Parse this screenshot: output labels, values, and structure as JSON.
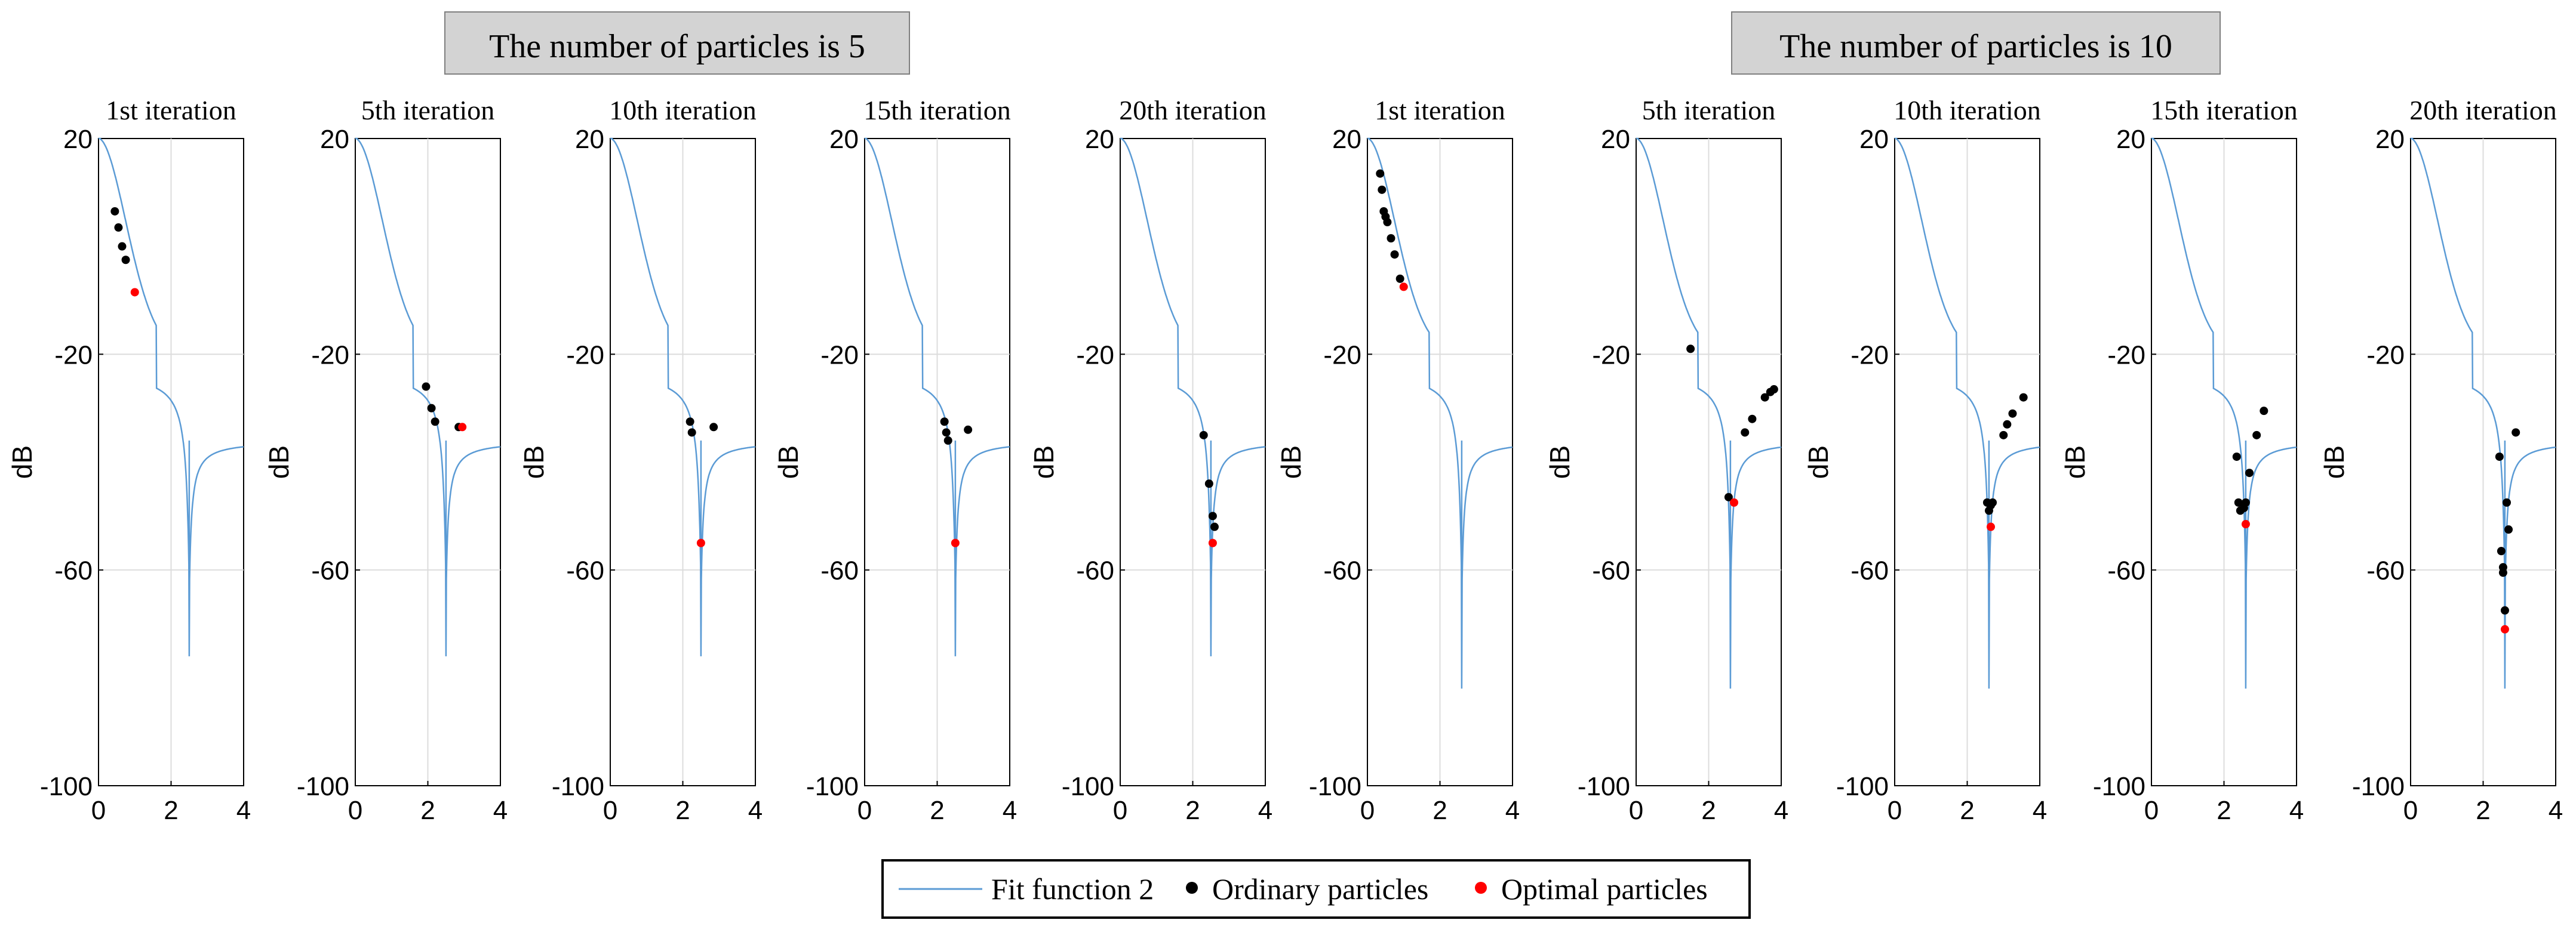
{
  "figure": {
    "group_headers": [
      "The number of particles is 5",
      "The number of particles is 10"
    ]
  },
  "legend": {
    "fit_label": "Fit function 2",
    "ordinary_label": "Ordinary particles",
    "optimal_label": "Optimal particles"
  },
  "colors": {
    "fit_line": "#5b9bd5",
    "ordinary": "#000000",
    "optimal": "#ff0000",
    "grid": "#dcdcdc",
    "header_bg": "#d3d3d3",
    "header_border": "#7f7f7f"
  },
  "chart_data": [
    {
      "type": "scatter",
      "group": "The number of particles is 5",
      "title": "1st iteration",
      "ylabel": "dB",
      "xlim": [
        0,
        4
      ],
      "ylim": [
        -100,
        20
      ],
      "xticks": [
        "0",
        "2",
        "4"
      ],
      "yticks": [
        "20",
        "-20",
        "-60",
        "-100"
      ],
      "grid": true,
      "curve_notch": {
        "x": 2.5,
        "depth": -76
      },
      "ordinary": [
        [
          0.45,
          6.5
        ],
        [
          0.55,
          3.5
        ],
        [
          0.65,
          0
        ],
        [
          0.75,
          -2.5
        ]
      ],
      "optimal": [
        [
          1.0,
          -8.5
        ]
      ]
    },
    {
      "type": "scatter",
      "group": "The number of particles is 5",
      "title": "5th iteration",
      "ylabel": "dB",
      "xlim": [
        0,
        4
      ],
      "ylim": [
        -100,
        20
      ],
      "xticks": [
        "0",
        "2",
        "4"
      ],
      "yticks": [
        "20",
        "-20",
        "-60",
        "-100"
      ],
      "grid": true,
      "curve_notch": {
        "x": 2.5,
        "depth": -76
      },
      "ordinary": [
        [
          1.95,
          -26
        ],
        [
          2.1,
          -30
        ],
        [
          2.2,
          -32.5
        ],
        [
          2.85,
          -33.5
        ]
      ],
      "optimal": [
        [
          2.95,
          -33.5
        ]
      ]
    },
    {
      "type": "scatter",
      "group": "The number of particles is 5",
      "title": "10th iteration",
      "ylabel": "dB",
      "xlim": [
        0,
        4
      ],
      "ylim": [
        -100,
        20
      ],
      "xticks": [
        "0",
        "2",
        "4"
      ],
      "yticks": [
        "20",
        "-20",
        "-60",
        "-100"
      ],
      "grid": true,
      "curve_notch": {
        "x": 2.5,
        "depth": -76
      },
      "ordinary": [
        [
          2.2,
          -32.5
        ],
        [
          2.25,
          -34.5
        ],
        [
          2.85,
          -33.5
        ]
      ],
      "optimal": [
        [
          2.5,
          -55
        ]
      ]
    },
    {
      "type": "scatter",
      "group": "The number of particles is 5",
      "title": "15th iteration",
      "ylabel": "dB",
      "xlim": [
        0,
        4
      ],
      "ylim": [
        -100,
        20
      ],
      "xticks": [
        "0",
        "2",
        "4"
      ],
      "yticks": [
        "20",
        "-20",
        "-60",
        "-100"
      ],
      "grid": true,
      "curve_notch": {
        "x": 2.5,
        "depth": -76
      },
      "ordinary": [
        [
          2.2,
          -32.5
        ],
        [
          2.25,
          -34.5
        ],
        [
          2.3,
          -36
        ],
        [
          2.85,
          -34
        ]
      ],
      "optimal": [
        [
          2.5,
          -55
        ]
      ]
    },
    {
      "type": "scatter",
      "group": "The number of particles is 5",
      "title": "20th iteration",
      "ylabel": "dB",
      "xlim": [
        0,
        4
      ],
      "ylim": [
        -100,
        20
      ],
      "xticks": [
        "0",
        "2",
        "4"
      ],
      "yticks": [
        "20",
        "-20",
        "-60",
        "-100"
      ],
      "grid": true,
      "curve_notch": {
        "x": 2.5,
        "depth": -76
      },
      "ordinary": [
        [
          2.3,
          -35
        ],
        [
          2.45,
          -44
        ],
        [
          2.55,
          -50
        ],
        [
          2.6,
          -52
        ]
      ],
      "optimal": [
        [
          2.55,
          -55
        ]
      ]
    },
    {
      "type": "scatter",
      "group": "The number of particles is 10",
      "title": "1st iteration",
      "ylabel": "dB",
      "xlim": [
        0,
        4
      ],
      "ylim": [
        -100,
        20
      ],
      "xticks": [
        "0",
        "2",
        "4"
      ],
      "yticks": [
        "20",
        "-20",
        "-60",
        "-100"
      ],
      "grid": true,
      "curve_notch": {
        "x": 2.6,
        "depth": -82
      },
      "ordinary": [
        [
          0.35,
          13.5
        ],
        [
          0.4,
          10.5
        ],
        [
          0.45,
          6.5
        ],
        [
          0.5,
          5.5
        ],
        [
          0.55,
          4.5
        ],
        [
          0.65,
          1.5
        ],
        [
          0.75,
          -1.5
        ],
        [
          0.9,
          -6
        ]
      ],
      "optimal": [
        [
          1.0,
          -7.5
        ]
      ]
    },
    {
      "type": "scatter",
      "group": "The number of particles is 10",
      "title": "5th iteration",
      "ylabel": "dB",
      "xlim": [
        0,
        4
      ],
      "ylim": [
        -100,
        20
      ],
      "xticks": [
        "0",
        "2",
        "4"
      ],
      "yticks": [
        "20",
        "-20",
        "-60",
        "-100"
      ],
      "grid": true,
      "curve_notch": {
        "x": 2.6,
        "depth": -82
      },
      "ordinary": [
        [
          1.5,
          -19
        ],
        [
          2.55,
          -46.5
        ],
        [
          3.0,
          -34.5
        ],
        [
          3.2,
          -32
        ],
        [
          3.55,
          -28
        ],
        [
          3.7,
          -27
        ],
        [
          3.8,
          -26.5
        ]
      ],
      "optimal": [
        [
          2.7,
          -47.5
        ]
      ]
    },
    {
      "type": "scatter",
      "group": "The number of particles is 10",
      "title": "10th iteration",
      "ylabel": "dB",
      "xlim": [
        0,
        4
      ],
      "ylim": [
        -100,
        20
      ],
      "xticks": [
        "0",
        "2",
        "4"
      ],
      "yticks": [
        "20",
        "-20",
        "-60",
        "-100"
      ],
      "grid": true,
      "curve_notch": {
        "x": 2.6,
        "depth": -82
      },
      "ordinary": [
        [
          2.55,
          -47.5
        ],
        [
          2.6,
          -49
        ],
        [
          2.65,
          -48
        ],
        [
          2.7,
          -47.5
        ],
        [
          3.0,
          -35
        ],
        [
          3.1,
          -33
        ],
        [
          3.25,
          -31
        ],
        [
          3.55,
          -28
        ]
      ],
      "optimal": [
        [
          2.65,
          -52
        ]
      ]
    },
    {
      "type": "scatter",
      "group": "The number of particles is 10",
      "title": "15th iteration",
      "ylabel": "dB",
      "xlim": [
        0,
        4
      ],
      "ylim": [
        -100,
        20
      ],
      "xticks": [
        "0",
        "2",
        "4"
      ],
      "yticks": [
        "20",
        "-20",
        "-60",
        "-100"
      ],
      "grid": true,
      "curve_notch": {
        "x": 2.6,
        "depth": -82
      },
      "ordinary": [
        [
          2.35,
          -39
        ],
        [
          2.4,
          -47.5
        ],
        [
          2.45,
          -49
        ],
        [
          2.55,
          -48.5
        ],
        [
          2.6,
          -47.5
        ],
        [
          2.7,
          -42
        ],
        [
          2.9,
          -35
        ],
        [
          3.1,
          -30.5
        ]
      ],
      "optimal": [
        [
          2.6,
          -51.5
        ]
      ]
    },
    {
      "type": "scatter",
      "group": "The number of particles is 10",
      "title": "20th iteration",
      "ylabel": "dB",
      "xlim": [
        0,
        4
      ],
      "ylim": [
        -100,
        20
      ],
      "xticks": [
        "0",
        "2",
        "4"
      ],
      "yticks": [
        "20",
        "-20",
        "-60",
        "-100"
      ],
      "grid": true,
      "curve_notch": {
        "x": 2.6,
        "depth": -82
      },
      "ordinary": [
        [
          2.45,
          -39
        ],
        [
          2.5,
          -56.5
        ],
        [
          2.55,
          -59.5
        ],
        [
          2.55,
          -60.5
        ],
        [
          2.6,
          -67.5
        ],
        [
          2.65,
          -47.5
        ],
        [
          2.7,
          -52.5
        ],
        [
          2.9,
          -34.5
        ]
      ],
      "optimal": [
        [
          2.6,
          -71
        ]
      ]
    }
  ]
}
